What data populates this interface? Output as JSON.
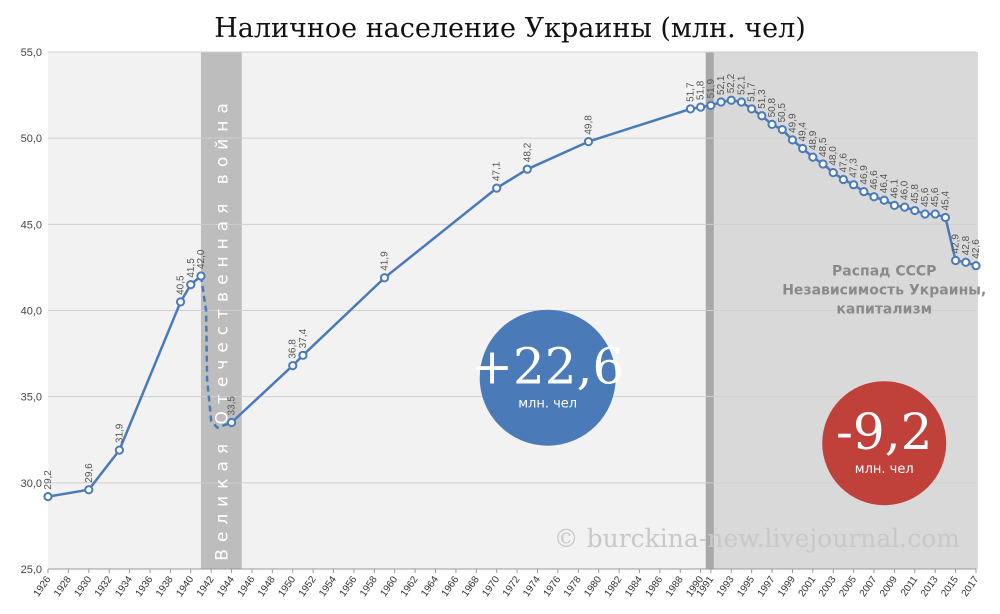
{
  "chart_data": {
    "type": "line",
    "title": "Наличное население Украины (млн. чел)",
    "ylim": [
      25,
      55
    ],
    "y_ticks": [
      "25,0",
      "30,0",
      "35,0",
      "40,0",
      "45,0",
      "50,0",
      "55,0"
    ],
    "xlim": [
      1926,
      2017
    ],
    "x_ticks": [
      "1926",
      "1928",
      "1930",
      "1932",
      "1934",
      "1936",
      "1938",
      "1940",
      "1942",
      "1944",
      "1946",
      "1948",
      "1950",
      "1952",
      "1954",
      "1956",
      "1958",
      "1960",
      "1962",
      "1964",
      "1966",
      "1968",
      "1970",
      "1972",
      "1974",
      "1976",
      "1978",
      "1980",
      "1982",
      "1984",
      "1986",
      "1988",
      "1990",
      "1991",
      "1993",
      "1995",
      "1997",
      "1999",
      "2001",
      "2003",
      "2005",
      "2007",
      "2009",
      "2011",
      "2013",
      "2015",
      "2017"
    ],
    "grid": true,
    "series": [
      {
        "color": "#4a7ab8",
        "points": [
          {
            "x": 1926,
            "y": 29.2,
            "label": "29,2"
          },
          {
            "x": 1930,
            "y": 29.6,
            "label": "29,6"
          },
          {
            "x": 1933,
            "y": 31.9,
            "label": "31,9"
          },
          {
            "x": 1939,
            "y": 40.5,
            "label": "40,5"
          },
          {
            "x": 1940,
            "y": 41.5,
            "label": "41,5"
          },
          {
            "x": 1941,
            "y": 42.0,
            "label": "42,0"
          },
          {
            "x": 1944,
            "y": 33.5,
            "label": "33,5"
          },
          {
            "x": 1950,
            "y": 36.8,
            "label": "36,8"
          },
          {
            "x": 1951,
            "y": 37.4,
            "label": "37,4"
          },
          {
            "x": 1959,
            "y": 41.9,
            "label": "41,9"
          },
          {
            "x": 1970,
            "y": 47.1,
            "label": "47,1"
          },
          {
            "x": 1973,
            "y": 48.2,
            "label": "48,2"
          },
          {
            "x": 1979,
            "y": 49.8,
            "label": "49,8"
          },
          {
            "x": 1989,
            "y": 51.7,
            "label": "51,7"
          },
          {
            "x": 1990,
            "y": 51.8,
            "label": "51,8"
          },
          {
            "x": 1991,
            "y": 51.9,
            "label": "51,9"
          },
          {
            "x": 1992,
            "y": 52.1,
            "label": "52,1"
          },
          {
            "x": 1993,
            "y": 52.2,
            "label": "52,2"
          },
          {
            "x": 1994,
            "y": 52.1,
            "label": "52,1"
          },
          {
            "x": 1995,
            "y": 51.7,
            "label": "51,7"
          },
          {
            "x": 1996,
            "y": 51.3,
            "label": "51,3"
          },
          {
            "x": 1997,
            "y": 50.8,
            "label": "50,8"
          },
          {
            "x": 1998,
            "y": 50.5,
            "label": "50,5"
          },
          {
            "x": 1999,
            "y": 49.9,
            "label": "49,9"
          },
          {
            "x": 2000,
            "y": 49.4,
            "label": "49,4"
          },
          {
            "x": 2001,
            "y": 48.9,
            "label": "48,9"
          },
          {
            "x": 2002,
            "y": 48.5,
            "label": "48,5"
          },
          {
            "x": 2003,
            "y": 48.0,
            "label": "48,0"
          },
          {
            "x": 2004,
            "y": 47.6,
            "label": "47,6"
          },
          {
            "x": 2005,
            "y": 47.3,
            "label": "47,3"
          },
          {
            "x": 2006,
            "y": 46.9,
            "label": "46,9"
          },
          {
            "x": 2007,
            "y": 46.6,
            "label": "46,6"
          },
          {
            "x": 2008,
            "y": 46.4,
            "label": "46,4"
          },
          {
            "x": 2009,
            "y": 46.1,
            "label": "46,1"
          },
          {
            "x": 2010,
            "y": 46.0,
            "label": "46,0"
          },
          {
            "x": 2011,
            "y": 45.8,
            "label": "45,8"
          },
          {
            "x": 2012,
            "y": 45.6,
            "label": "45,6"
          },
          {
            "x": 2013,
            "y": 45.6,
            "label": "45,6"
          },
          {
            "x": 2014,
            "y": 45.4,
            "label": "45,4"
          },
          {
            "x": 2015,
            "y": 42.9,
            "label": "42,9"
          },
          {
            "x": 2016,
            "y": 42.8,
            "label": "42,8"
          },
          {
            "x": 2017,
            "y": 42.6,
            "label": "42,6"
          }
        ]
      }
    ],
    "war_dip_series": [
      {
        "x": 1941,
        "y": 42.0
      },
      {
        "x": 1941.5,
        "y": 40.0
      },
      {
        "x": 1941.6,
        "y": 36.0
      },
      {
        "x": 1942,
        "y": 33.6
      },
      {
        "x": 1942.6,
        "y": 33.2
      },
      {
        "x": 1944,
        "y": 33.5
      }
    ],
    "shaded_periods": [
      {
        "name": "war",
        "from": 1941,
        "to": 1945,
        "color": "#bdbdbd",
        "label": "Великая Отечественная война"
      },
      {
        "name": "post-soviet",
        "from": 1990.5,
        "to": 2017.3,
        "color": "#d9d9d9"
      }
    ],
    "annotations": [
      {
        "lines": [
          "Распад СССР",
          "Независимость Украины,",
          "капитализм"
        ],
        "x": 2008,
        "y": 41.0
      }
    ],
    "callouts": [
      {
        "value": "+22,6",
        "unit": "млн. чел",
        "color": "#4a7ab8",
        "x": 1975,
        "y": 36.1
      },
      {
        "value": "-9,2",
        "unit": "млн. чел",
        "color": "#c0403a",
        "x": 2008,
        "y": 32.3
      }
    ],
    "watermark": "© burckina-new.livejournal.com"
  }
}
